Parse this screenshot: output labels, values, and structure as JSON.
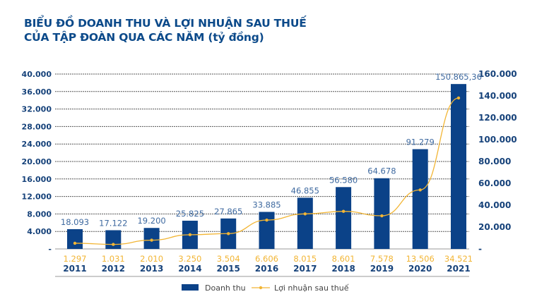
{
  "title_line1": "BIỂU ĐỒ DOANH THU VÀ LỢI NHUẬN SAU THUẾ",
  "title_line2": "CỦA TẬP ĐOÀN QUA CÁC NĂM (tỷ đồng)",
  "chart_data": {
    "type": "bar+line",
    "categories": [
      "2011",
      "2012",
      "2013",
      "2014",
      "2015",
      "2016",
      "2017",
      "2018",
      "2019",
      "2020",
      "2021"
    ],
    "series": [
      {
        "name": "Doanh thu",
        "type": "bar",
        "axis": "right",
        "color": "#0b4288",
        "values": [
          18093,
          17122,
          19200,
          25825,
          27865,
          33885,
          46855,
          56580,
          64678,
          91279,
          150865.36
        ],
        "labels": [
          "18.093",
          "17.122",
          "19.200",
          "25.825",
          "27.865",
          "33.885",
          "46.855",
          "56.580",
          "64.678",
          "91.279",
          "150.865,36"
        ]
      },
      {
        "name": "Lợi nhuận sau thuế",
        "type": "line",
        "axis": "left",
        "color": "#f2b534",
        "values": [
          1297,
          1031,
          2010,
          3250,
          3504,
          6606,
          8015,
          8601,
          7578,
          13506,
          34521
        ],
        "labels": [
          "1.297",
          "1.031",
          "2.010",
          "3.250",
          "3.504",
          "6.606",
          "8.015",
          "8.601",
          "7.578",
          "13.506",
          "34.521"
        ]
      }
    ],
    "left_axis": {
      "ylim": [
        0,
        40000
      ],
      "ticks": [
        "-",
        "4.000",
        "8.000",
        "12.000",
        "16.000",
        "20.000",
        "24.000",
        "28.000",
        "32.000",
        "36.000",
        "40.000"
      ]
    },
    "right_axis": {
      "ylim": [
        0,
        160000
      ],
      "ticks": [
        "-",
        "20.000",
        "40.000",
        "60.000",
        "80.000",
        "100.000",
        "120.000",
        "140.000",
        "160.000"
      ]
    },
    "grid": true,
    "legend": "bottom"
  }
}
